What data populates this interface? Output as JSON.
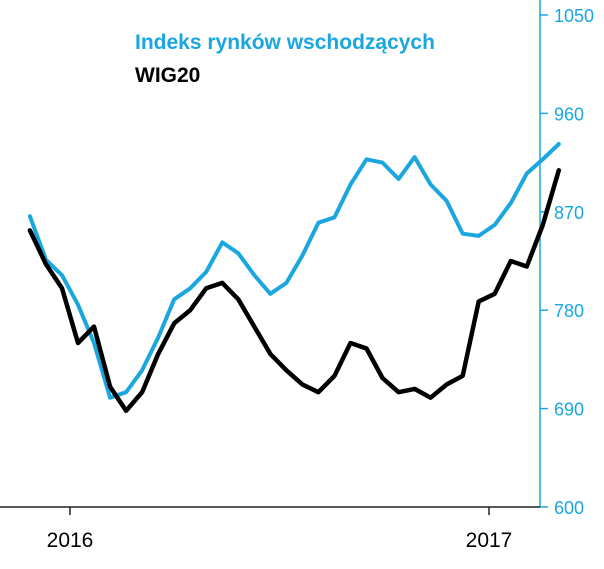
{
  "chart_data": {
    "type": "line",
    "title": "",
    "xlabel": "",
    "ylabel": "",
    "x_ticks": [
      "2016",
      "2017"
    ],
    "ylim": [
      600,
      1050
    ],
    "yticks": [
      600,
      690,
      780,
      870,
      960,
      1050
    ],
    "grid": false,
    "legend_position": "top-left",
    "colors": {
      "em": "#1aa7e0",
      "wig": "#000000",
      "axis": "#1aa7e0"
    },
    "x": [
      "2015-11-27",
      "2015-12-11",
      "2015-12-25",
      "2016-01-08",
      "2016-01-22",
      "2016-02-05",
      "2016-02-19",
      "2016-03-04",
      "2016-03-18",
      "2016-04-01",
      "2016-04-15",
      "2016-04-29",
      "2016-05-13",
      "2016-05-27",
      "2016-06-10",
      "2016-06-24",
      "2016-07-08",
      "2016-07-22",
      "2016-08-05",
      "2016-08-19",
      "2016-09-02",
      "2016-09-16",
      "2016-09-30",
      "2016-10-14",
      "2016-10-28",
      "2016-11-11",
      "2016-11-25",
      "2016-12-09",
      "2016-12-23",
      "2017-01-06",
      "2017-01-20",
      "2017-02-03",
      "2017-02-17",
      "2017-03-03"
    ],
    "series": [
      {
        "name": "Indeks rynków wschodzących",
        "key": "em",
        "values": [
          866,
          826,
          812,
          785,
          750,
          700,
          705,
          725,
          755,
          790,
          800,
          815,
          842,
          832,
          812,
          795,
          805,
          830,
          860,
          865,
          895,
          918,
          915,
          900,
          920,
          895,
          880,
          850,
          848,
          858,
          878,
          905,
          918,
          932
        ]
      },
      {
        "name": "WIG20",
        "key": "wig",
        "values": [
          853,
          822,
          800,
          750,
          765,
          710,
          688,
          705,
          740,
          768,
          780,
          800,
          805,
          790,
          765,
          740,
          725,
          712,
          705,
          720,
          750,
          745,
          718,
          705,
          708,
          700,
          712,
          720,
          788,
          795,
          825,
          820,
          858,
          908
        ]
      }
    ]
  }
}
